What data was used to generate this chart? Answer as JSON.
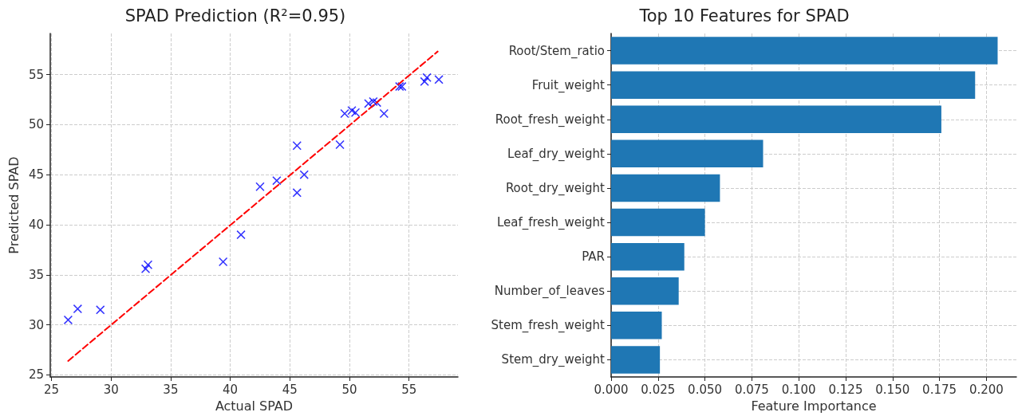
{
  "chart_data": [
    {
      "type": "scatter",
      "title": "SPAD Prediction (R²=0.95)",
      "xlabel": "Actual SPAD",
      "ylabel": "Predicted SPAD",
      "xlim": [
        24.9,
        59.1
      ],
      "ylim": [
        24.8,
        59.1
      ],
      "xticks": [
        25,
        30,
        35,
        40,
        45,
        50,
        55
      ],
      "yticks": [
        25,
        30,
        35,
        40,
        45,
        50,
        55
      ],
      "grid": true,
      "series": [
        {
          "type": "scatter",
          "color": "#0000ff",
          "marker": "cross",
          "x": [
            26.4,
            27.2,
            29.1,
            32.9,
            33.1,
            39.4,
            40.9,
            42.5,
            43.9,
            45.6,
            45.6,
            46.2,
            49.2,
            49.6,
            50.2,
            50.5,
            51.6,
            52.0,
            52.3,
            52.9,
            54.2,
            54.4,
            56.3,
            56.5,
            57.5
          ],
          "values": [
            30.5,
            31.6,
            31.5,
            35.6,
            36.0,
            36.3,
            39.0,
            43.8,
            44.4,
            47.9,
            43.2,
            45.0,
            48.0,
            51.1,
            51.4,
            51.2,
            52.1,
            52.3,
            52.2,
            51.1,
            53.8,
            53.8,
            54.3,
            54.7,
            54.5
          ]
        },
        {
          "type": "line",
          "color": "#ff0000",
          "line_style": "dashed",
          "marker": "none",
          "x": [
            26.4,
            57.4
          ],
          "values": [
            26.4,
            57.3
          ]
        }
      ]
    },
    {
      "type": "bar",
      "orientation": "horizontal",
      "title": "Top 10 Features for SPAD",
      "xlabel": "Feature Importance",
      "color": "#1f77b4",
      "grid": true,
      "categories": [
        "Root/Stem_ratio",
        "Fruit_weight",
        "Root_fresh_weight",
        "Leaf_dry_weight",
        "Root_dry_weight",
        "Leaf_fresh_weight",
        "PAR",
        "Number_of_leaves",
        "Stem_fresh_weight",
        "Stem_dry_weight"
      ],
      "values": [
        0.206,
        0.194,
        0.176,
        0.081,
        0.058,
        0.05,
        0.039,
        0.036,
        0.027,
        0.026
      ],
      "xlim": [
        0,
        0.216
      ],
      "xticks": [
        {
          "value": 0,
          "label": "0.000"
        },
        {
          "value": 0.025,
          "label": "0.025"
        },
        {
          "value": 0.05,
          "label": "0.050"
        },
        {
          "value": 0.075,
          "label": "0.075"
        },
        {
          "value": 0.1,
          "label": "0.100"
        },
        {
          "value": 0.125,
          "label": "0.125"
        },
        {
          "value": 0.15,
          "label": "0.150"
        },
        {
          "value": 0.175,
          "label": "0.175"
        },
        {
          "value": 0.2,
          "label": "0.200"
        }
      ]
    }
  ]
}
